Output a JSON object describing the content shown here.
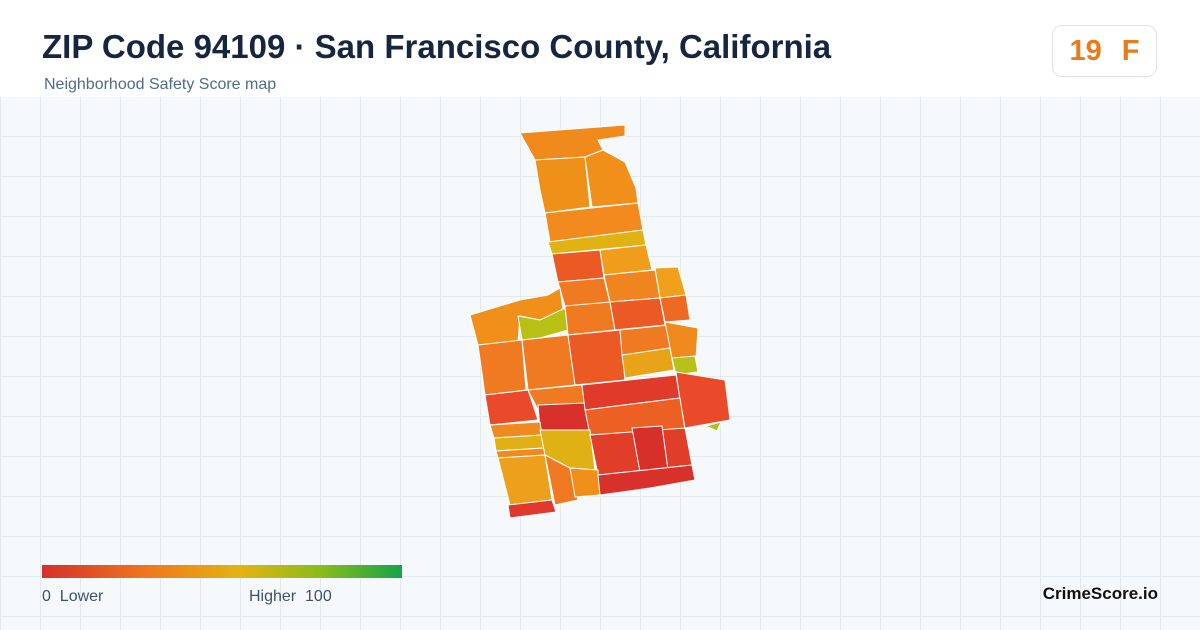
{
  "header": {
    "title": "ZIP Code 94109 · San Francisco County, California",
    "subtitle": "Neighborhood Safety Score map"
  },
  "score": {
    "value": 19,
    "grade": "F"
  },
  "legend": {
    "min": 0,
    "min_label": "Lower",
    "max_label": "Higher",
    "max": 100
  },
  "footer": {
    "brand": "CrimeScore.io"
  }
}
